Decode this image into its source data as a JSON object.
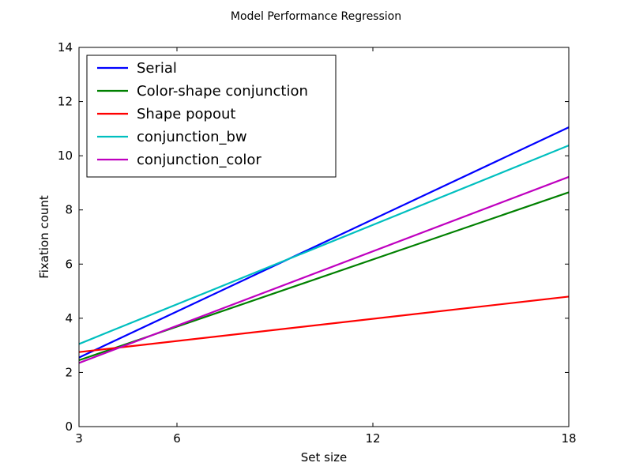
{
  "chart_data": {
    "type": "line",
    "title": "Model Performance Regression",
    "xlabel": "Set size",
    "ylabel": "Fixation count",
    "xlim": [
      3,
      18
    ],
    "ylim": [
      0,
      14
    ],
    "xticks": [
      3,
      6,
      12,
      18
    ],
    "yticks": [
      0,
      2,
      4,
      6,
      8,
      10,
      12,
      14
    ],
    "grid": false,
    "legend_position": "top-left",
    "series": [
      {
        "name": "Serial",
        "color": "#0000ff",
        "x": [
          3,
          18
        ],
        "y": [
          2.55,
          11.05
        ]
      },
      {
        "name": "Color-shape conjunction",
        "color": "#008000",
        "x": [
          3,
          18
        ],
        "y": [
          2.45,
          8.65
        ]
      },
      {
        "name": "Shape popout",
        "color": "#ff0000",
        "x": [
          3,
          18
        ],
        "y": [
          2.75,
          4.8
        ]
      },
      {
        "name": "conjunction_bw",
        "color": "#00bfbf",
        "x": [
          3,
          18
        ],
        "y": [
          3.05,
          10.38
        ]
      },
      {
        "name": "conjunction_color",
        "color": "#bf00bf",
        "x": [
          3,
          18
        ],
        "y": [
          2.35,
          9.22
        ]
      }
    ]
  }
}
